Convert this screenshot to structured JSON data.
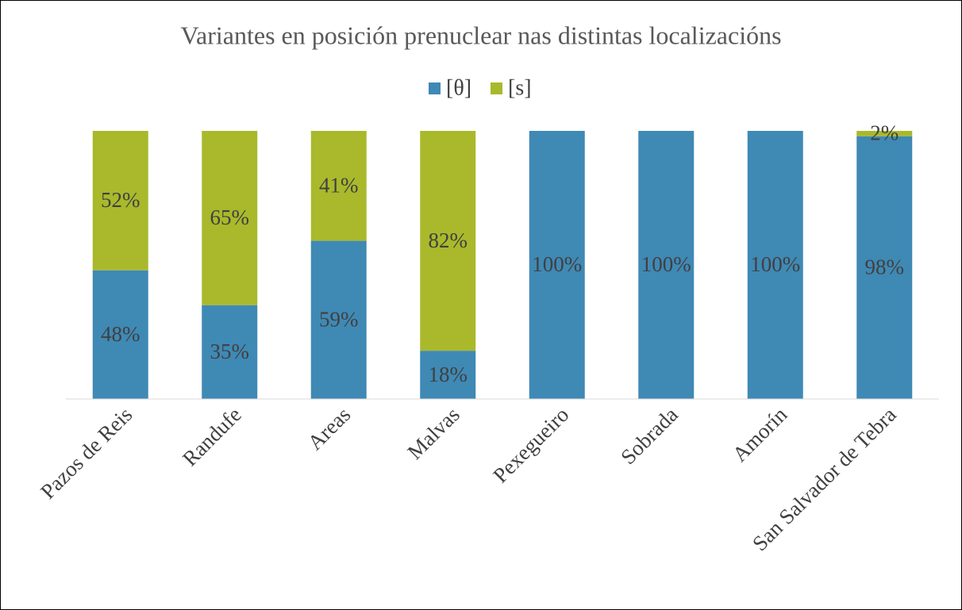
{
  "chart_data": {
    "type": "stacked_bar",
    "title": "Variantes en posición prenuclear nas distintas localizacións",
    "categories": [
      "Pazos de Reis",
      "Randufe",
      "Areas",
      "Malvas",
      "Pexegueiro",
      "Sobrada",
      "Amorín",
      "San Salvador de Tebra"
    ],
    "series": [
      {
        "name": "[θ]",
        "color": "#3f89b5",
        "values": [
          48,
          35,
          59,
          18,
          100,
          100,
          100,
          98
        ],
        "value_labels": [
          "48%",
          "35%",
          "59%",
          "18%",
          "100%",
          "100%",
          "100%",
          "98%"
        ]
      },
      {
        "name": "[s]",
        "color": "#a9b92b",
        "values": [
          52,
          65,
          41,
          82,
          0,
          0,
          0,
          2
        ],
        "value_labels": [
          "52%",
          "65%",
          "41%",
          "82%",
          null,
          null,
          null,
          "2%"
        ]
      }
    ],
    "ylim": [
      0,
      100
    ],
    "legend": "top"
  }
}
